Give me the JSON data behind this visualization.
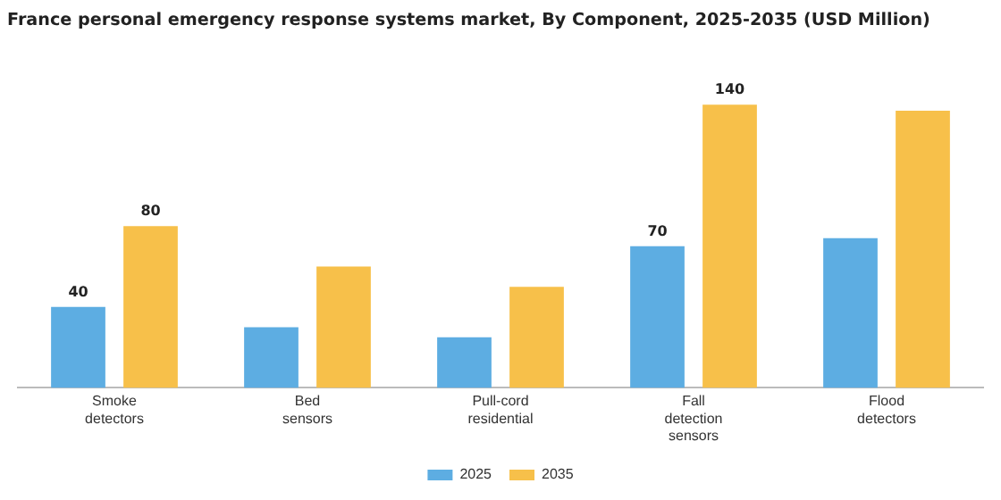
{
  "chart_data": {
    "type": "bar",
    "title": "France personal emergency response systems market, By Component, 2025-2035 (USD Million)",
    "categories": [
      "Smoke detectors",
      "Bed sensors",
      "Pull-cord residential",
      "Fall detection sensors",
      "Flood detectors"
    ],
    "series": [
      {
        "name": "2025",
        "color": "#5dade2",
        "values": [
          40,
          30,
          25,
          70,
          74
        ],
        "value_labels": [
          "40",
          null,
          null,
          "70",
          null
        ]
      },
      {
        "name": "2035",
        "color": "#f7c04a",
        "values": [
          80,
          60,
          50,
          140,
          137
        ],
        "value_labels": [
          "80",
          null,
          null,
          "140",
          null
        ]
      }
    ],
    "tick_labels": "x",
    "grid": false,
    "legend": "bottom"
  }
}
